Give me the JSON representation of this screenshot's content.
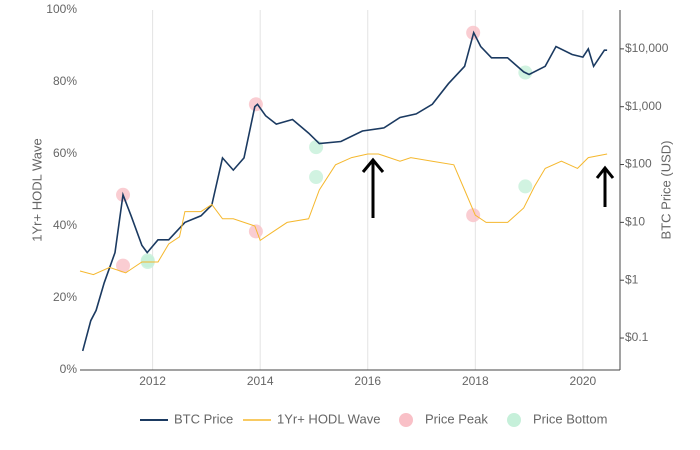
{
  "chart_data": {
    "type": "line",
    "y_label": "1Yr+ HODL Wave",
    "y2_label": "BTC Price (USD)",
    "xlim": [
      2010.65,
      2020.69
    ],
    "xticks": [
      2012,
      2014,
      2016,
      2018,
      2020
    ],
    "ylim": [
      0,
      100
    ],
    "yticks": [
      {
        "value": 0,
        "label": "0%"
      },
      {
        "value": 20,
        "label": "20%"
      },
      {
        "value": 40,
        "label": "40%"
      },
      {
        "value": 60,
        "label": "60%"
      },
      {
        "value": 80,
        "label": "80%"
      },
      {
        "value": 100,
        "label": "100%"
      }
    ],
    "y2lim": [
      0.028,
      47000
    ],
    "y2_log": true,
    "y2ticks": [
      {
        "value": 0.1,
        "label": "$0.1"
      },
      {
        "value": 1,
        "label": "$1"
      },
      {
        "value": 10,
        "label": "$10"
      },
      {
        "value": 100,
        "label": "$100"
      },
      {
        "value": 1000,
        "label": "$1,000"
      },
      {
        "value": 10000,
        "label": "$10,000"
      }
    ],
    "grid": "x",
    "series": [
      {
        "name": "BTC Price",
        "type": "line",
        "axis": "y2",
        "color": "#1b3a61",
        "x": [
          2010.7,
          2010.85,
          2010.95,
          2011.1,
          2011.3,
          2011.45,
          2011.6,
          2011.8,
          2011.9,
          2012.1,
          2012.3,
          2012.6,
          2012.9,
          2013.1,
          2013.3,
          2013.5,
          2013.7,
          2013.9,
          2013.95,
          2014.1,
          2014.3,
          2014.6,
          2014.9,
          2015.1,
          2015.5,
          2015.9,
          2016.3,
          2016.6,
          2016.9,
          2017.2,
          2017.5,
          2017.8,
          2017.97,
          2018.1,
          2018.3,
          2018.6,
          2018.9,
          2019.0,
          2019.3,
          2019.5,
          2019.8,
          2020.0,
          2020.1,
          2020.2,
          2020.4,
          2020.45
        ],
        "values": [
          0.06,
          0.2,
          0.3,
          0.9,
          3,
          30,
          13,
          4,
          3,
          5,
          5,
          10,
          13,
          20,
          130,
          80,
          130,
          1000,
          1100,
          700,
          500,
          600,
          350,
          230,
          250,
          380,
          430,
          650,
          750,
          1100,
          2500,
          5000,
          19000,
          11000,
          7000,
          7000,
          4000,
          3600,
          5000,
          11000,
          8000,
          7200,
          10000,
          5000,
          9500,
          9500
        ]
      },
      {
        "name": "1Yr+ HODL Wave",
        "type": "line",
        "color": "#f5b82e",
        "x": [
          2010.65,
          2010.9,
          2011.2,
          2011.5,
          2011.8,
          2012.1,
          2012.3,
          2012.5,
          2012.6,
          2012.9,
          2013.1,
          2013.3,
          2013.5,
          2013.9,
          2014.0,
          2014.2,
          2014.5,
          2014.9,
          2015.1,
          2015.4,
          2015.7,
          2016.0,
          2016.2,
          2016.6,
          2016.8,
          2017.2,
          2017.6,
          2017.8,
          2018.0,
          2018.2,
          2018.6,
          2018.9,
          2019.1,
          2019.3,
          2019.6,
          2019.9,
          2020.1,
          2020.45
        ],
        "values": [
          27.5,
          26.5,
          28.5,
          27,
          30,
          30,
          35,
          37,
          44,
          44,
          46,
          42,
          42,
          40,
          36,
          38,
          41,
          42,
          50,
          57,
          59,
          60,
          60,
          58,
          59,
          58,
          57,
          50,
          43,
          41,
          41,
          45,
          51,
          56,
          58,
          56,
          59,
          60
        ]
      },
      {
        "name": "Price Peak",
        "type": "scatter",
        "color": "#f9c0c7",
        "x": [
          2011.45,
          2013.92,
          2017.96
        ],
        "values": [
          29,
          38.5,
          43
        ],
        "price_values": [
          30,
          1100,
          19000
        ]
      },
      {
        "name": "Price Bottom",
        "type": "scatter",
        "color": "#c6f0da",
        "x": [
          2011.91,
          2015.04,
          2018.93
        ],
        "values": [
          30,
          53.6,
          51
        ],
        "price_values": [
          2.2,
          200,
          3900
        ]
      }
    ]
  }
}
